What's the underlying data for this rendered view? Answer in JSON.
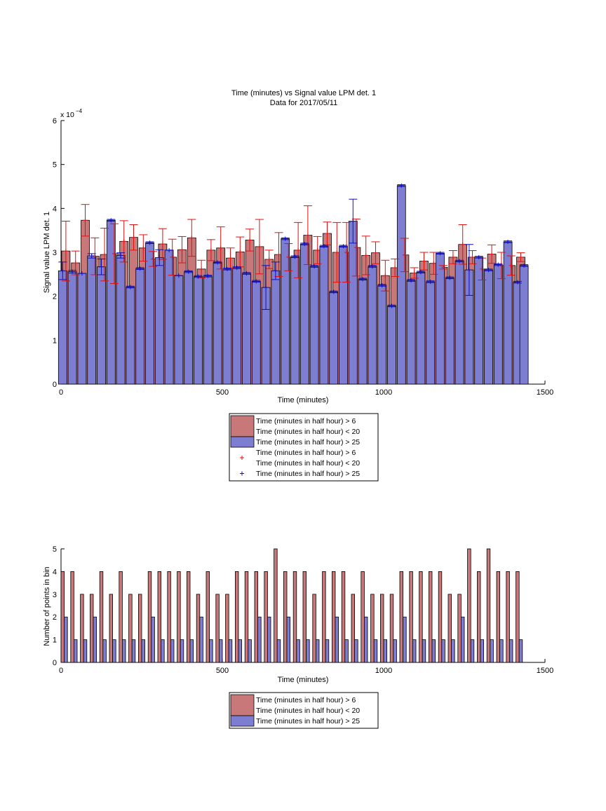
{
  "chart_data": [
    {
      "type": "bar",
      "title": "Time (minutes) vs Signal value LPM det. 1",
      "subtitle": "Data for 2017/05/11",
      "xlabel": "Time (minutes)",
      "ylabel": "Signal value LPM det. 1",
      "exponent_label": "x 10",
      "exponent_power": "−4",
      "xlim": [
        0,
        1500
      ],
      "ylim": [
        0,
        6
      ],
      "xticks": [
        "0",
        "500",
        "1000",
        "1500"
      ],
      "yticks": [
        "0",
        "1",
        "2",
        "3",
        "4",
        "5",
        "6"
      ],
      "grid": false,
      "legend_placement": "below",
      "legend": [
        {
          "marker": "patch",
          "color": "#c87878",
          "label1": "Time (minutes in half hour) > 6",
          "label2": "Time (minutes in half hour) < 20"
        },
        {
          "marker": "patch",
          "color": "#7d7dd2",
          "label1": "Time (minutes in half hour) > 25",
          "label2": ""
        },
        {
          "marker": "plus",
          "color": "#e01010",
          "label1": "Time (minutes in half hour) > 6",
          "label2": "Time (minutes in half hour) < 20"
        },
        {
          "marker": "plus",
          "color": "#1010c0",
          "label1": "Time (minutes in half hour) > 25",
          "label2": ""
        }
      ],
      "series": [
        {
          "color": "#c87878",
          "err_color": "#e01010",
          "x": [
            15,
            45,
            75,
            105,
            135,
            165,
            195,
            225,
            255,
            285,
            315,
            345,
            375,
            405,
            435,
            465,
            495,
            525,
            555,
            585,
            615,
            645,
            675,
            705,
            735,
            765,
            795,
            825,
            855,
            885,
            915,
            945,
            975,
            1005,
            1035,
            1065,
            1095,
            1125,
            1155,
            1185,
            1215,
            1245,
            1275,
            1305,
            1335,
            1365,
            1395,
            1425
          ],
          "values": [
            3.03,
            2.76,
            3.73,
            2.91,
            2.95,
            2.97,
            3.25,
            3.34,
            3.1,
            2.85,
            3.19,
            2.89,
            3.06,
            3.33,
            2.62,
            3.05,
            3.1,
            2.87,
            3.01,
            3.28,
            3.13,
            2.84,
            2.95,
            2.89,
            3.05,
            3.39,
            3.05,
            3.43,
            3.0,
            3.0,
            3.11,
            2.93,
            2.99,
            2.47,
            2.65,
            2.94,
            2.53,
            2.8,
            2.75,
            2.66,
            2.89,
            3.18,
            2.89,
            2.62,
            2.96,
            2.7,
            2.7,
            2.89
          ],
          "err": [
            0.68,
            0.27,
            0.36,
            0.42,
            0.6,
            0.68,
            0.47,
            0.29,
            0.3,
            0.17,
            0.35,
            0.41,
            0.3,
            0.42,
            0.2,
            0.24,
            0.48,
            0.23,
            0.34,
            0.25,
            0.62,
            0.21,
            0.5,
            0.31,
            0.63,
            0.67,
            0.31,
            0.26,
            0.68,
            0.68,
            0.65,
            0.44,
            0.25,
            0.35,
            0.2,
            0.38,
            0.12,
            0.2,
            0.25,
            0.04,
            0.15,
            0.45,
            0.15,
            0.25,
            0.21,
            0.3,
            0.22,
            0.1
          ]
        },
        {
          "color": "#7d7dd2",
          "err_color": "#1010c0",
          "x": [
            5,
            35,
            65,
            95,
            125,
            155,
            185,
            215,
            245,
            275,
            305,
            335,
            365,
            395,
            425,
            455,
            485,
            515,
            545,
            575,
            605,
            635,
            665,
            695,
            725,
            755,
            785,
            815,
            845,
            875,
            905,
            935,
            965,
            995,
            1025,
            1055,
            1085,
            1115,
            1145,
            1175,
            1205,
            1235,
            1265,
            1295,
            1325,
            1355,
            1385,
            1415,
            1435
          ],
          "values": [
            2.58,
            2.56,
            2.52,
            2.92,
            2.67,
            3.73,
            2.93,
            2.21,
            2.63,
            3.22,
            2.88,
            3.05,
            2.47,
            2.56,
            2.45,
            2.46,
            2.77,
            2.62,
            2.65,
            2.52,
            2.34,
            2.2,
            2.58,
            3.31,
            2.9,
            3.19,
            2.68,
            3.14,
            2.1,
            3.14,
            3.71,
            2.39,
            2.68,
            2.25,
            1.78,
            4.52,
            2.36,
            2.55,
            2.33,
            2.98,
            2.42,
            2.8,
            2.6,
            2.89,
            2.6,
            2.72,
            3.24,
            2.32,
            2.7
          ],
          "err": [
            0.2,
            0.03,
            0.0,
            0.05,
            0.18,
            0.02,
            0.06,
            0.02,
            0.02,
            0.02,
            0.18,
            0.0,
            0.0,
            0.02,
            0.02,
            0.02,
            0.02,
            0.02,
            0.02,
            0.02,
            0.02,
            0.5,
            0.2,
            0.02,
            0.02,
            0.02,
            0.02,
            0.02,
            0.02,
            0.02,
            0.5,
            0.02,
            0.02,
            0.02,
            0.02,
            0.02,
            0.02,
            0.02,
            0.02,
            0.02,
            0.02,
            0.02,
            0.58,
            0.02,
            0.02,
            0.02,
            0.02,
            0.02,
            0.02
          ]
        }
      ]
    },
    {
      "type": "bar",
      "xlabel": "Time (minutes)",
      "ylabel": "Number of points in bin",
      "xlim": [
        0,
        1500
      ],
      "ylim": [
        0,
        5
      ],
      "xticks": [
        "0",
        "500",
        "1000",
        "1500"
      ],
      "yticks": [
        "0",
        "1",
        "2",
        "3",
        "4",
        "5"
      ],
      "grid": false,
      "legend_placement": "below",
      "legend": [
        {
          "marker": "patch",
          "color": "#c87878",
          "label1": "Time (minutes in half hour) > 6",
          "label2": "Time (minutes in half hour) < 20"
        },
        {
          "marker": "patch",
          "color": "#7d7dd2",
          "label1": "Time (minutes in half hour) > 25",
          "label2": ""
        }
      ],
      "series": [
        {
          "color": "#c87878",
          "x": [
            5,
            35,
            65,
            95,
            125,
            155,
            185,
            215,
            245,
            275,
            305,
            335,
            365,
            395,
            425,
            455,
            485,
            515,
            545,
            575,
            605,
            635,
            665,
            695,
            725,
            755,
            785,
            815,
            845,
            875,
            905,
            935,
            965,
            995,
            1025,
            1055,
            1085,
            1115,
            1145,
            1175,
            1205,
            1235,
            1265,
            1295,
            1325,
            1355,
            1385,
            1415
          ],
          "values": [
            4,
            4,
            3,
            3,
            4,
            3,
            4,
            3,
            3,
            4,
            4,
            4,
            4,
            4,
            3,
            4,
            3,
            3,
            4,
            4,
            4,
            4,
            5,
            4,
            4,
            4,
            3,
            4,
            4,
            4,
            3,
            4,
            3,
            3,
            3,
            4,
            4,
            4,
            4,
            4,
            3,
            3,
            5,
            4,
            5,
            4,
            4,
            4
          ]
        },
        {
          "color": "#7d7dd2",
          "x": [
            15,
            45,
            75,
            105,
            135,
            165,
            195,
            225,
            255,
            285,
            315,
            345,
            375,
            405,
            435,
            465,
            495,
            525,
            555,
            585,
            615,
            645,
            675,
            705,
            735,
            765,
            795,
            825,
            855,
            885,
            915,
            945,
            975,
            1005,
            1035,
            1065,
            1095,
            1125,
            1155,
            1185,
            1215,
            1245,
            1275,
            1305,
            1335,
            1365,
            1395,
            1425
          ],
          "values": [
            2,
            1,
            1,
            2,
            1,
            1,
            1,
            1,
            1,
            2,
            1,
            1,
            1,
            1,
            2,
            1,
            1,
            1,
            1,
            1,
            2,
            2,
            1,
            2,
            1,
            1,
            1,
            1,
            2,
            1,
            1,
            2,
            1,
            1,
            1,
            2,
            1,
            1,
            1,
            1,
            1,
            2,
            1,
            1,
            1,
            1,
            1,
            1
          ]
        }
      ]
    }
  ]
}
